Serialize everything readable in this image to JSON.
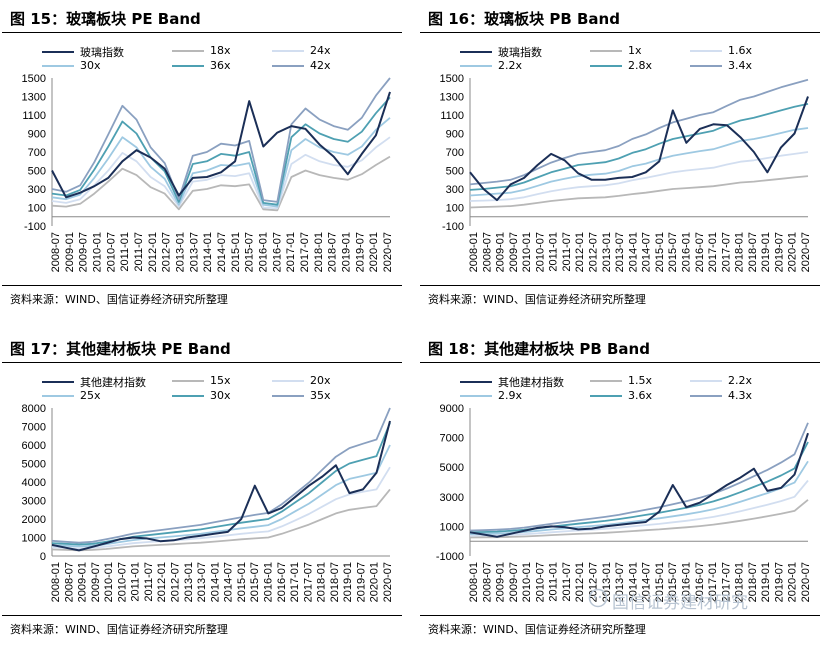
{
  "watermark": {
    "text": "国信证券建材研究",
    "icon": "wechat-icon"
  },
  "x_categories": [
    "2008-01",
    "2008-07",
    "2009-01",
    "2009-07",
    "2010-01",
    "2010-07",
    "2011-01",
    "2011-07",
    "2012-01",
    "2012-07",
    "2013-01",
    "2013-07",
    "2014-01",
    "2014-07",
    "2015-01",
    "2015-07",
    "2016-01",
    "2016-07",
    "2017-01",
    "2017-07",
    "2018-01",
    "2018-07",
    "2019-01",
    "2019-07",
    "2020-01",
    "2020-07"
  ],
  "panels": [
    {
      "title": "图 15：玻璃板块 PE Band",
      "source": "资料来源：WIND、国信证券经济研究所整理",
      "chart_data": {
        "type": "line",
        "x_labels": [
          "2008-07",
          "2009-01",
          "2009-07",
          "2010-01",
          "2010-07",
          "2011-01",
          "2011-07",
          "2012-01",
          "2012-07",
          "2013-01",
          "2013-07",
          "2014-01",
          "2014-07",
          "2015-01",
          "2015-07",
          "2016-01",
          "2016-07",
          "2017-01",
          "2017-07",
          "2018-01",
          "2018-07",
          "2019-01",
          "2019-07",
          "2020-01",
          "2020-07"
        ],
        "ylim": [
          -100,
          1500
        ],
        "yticks": [
          -100,
          100,
          300,
          500,
          700,
          900,
          1100,
          1300,
          1500
        ],
        "series": [
          {
            "name": "玻璃指数",
            "color": "#1b2f57",
            "values": [
              500,
              210,
              260,
              330,
              420,
              600,
              720,
              640,
              520,
              230,
              420,
              430,
              480,
              600,
              1250,
              760,
              910,
              980,
              950,
              780,
              650,
              460,
              680,
              880,
              1350
            ]
          },
          {
            "name": "18x",
            "color": "#b8b8b8",
            "values": [
              120,
              110,
              140,
              250,
              380,
              520,
              450,
              320,
              250,
              80,
              280,
              300,
              340,
              330,
              350,
              80,
              70,
              430,
              500,
              450,
              420,
              400,
              460,
              560,
              650
            ]
          },
          {
            "name": "24x",
            "color": "#d2def0",
            "values": [
              170,
              150,
              190,
              340,
              500,
              690,
              600,
              430,
              330,
              110,
              380,
              400,
              450,
              440,
              470,
              100,
              90,
              570,
              670,
              600,
              560,
              540,
              610,
              750,
              860
            ]
          },
          {
            "name": "30x",
            "color": "#9ec9e2",
            "values": [
              210,
              190,
              240,
              420,
              630,
              860,
              750,
              540,
              410,
              130,
              470,
              500,
              560,
              550,
              580,
              130,
              110,
              720,
              840,
              750,
              700,
              670,
              760,
              940,
              1070
            ]
          },
          {
            "name": "36x",
            "color": "#4ea0b2",
            "values": [
              250,
              230,
              290,
              510,
              760,
              1030,
              900,
              640,
              490,
              160,
              570,
              600,
              680,
              660,
              700,
              150,
              130,
              860,
              1000,
              900,
              840,
              810,
              920,
              1120,
              1290
            ]
          },
          {
            "name": "42x",
            "color": "#8aa0c0",
            "values": [
              300,
              270,
              340,
              590,
              890,
              1200,
              1050,
              750,
              580,
              190,
              660,
              700,
              790,
              770,
              820,
              180,
              160,
              1000,
              1170,
              1050,
              980,
              940,
              1070,
              1310,
              1500
            ]
          }
        ]
      }
    },
    {
      "title": "图 16：玻璃板块 PB Band",
      "source": "资料来源：WIND、国信证券经济研究所整理",
      "chart_data": {
        "type": "line",
        "x_labels": [
          "2008-01",
          "2008-07",
          "2009-01",
          "2009-07",
          "2010-01",
          "2010-07",
          "2011-01",
          "2011-07",
          "2012-01",
          "2012-07",
          "2013-01",
          "2013-07",
          "2014-01",
          "2014-07",
          "2015-01",
          "2015-07",
          "2016-01",
          "2016-07",
          "2017-01",
          "2017-07",
          "2018-01",
          "2018-07",
          "2019-01",
          "2019-07",
          "2020-01",
          "2020-07"
        ],
        "ylim": [
          -100,
          1500
        ],
        "yticks": [
          -100,
          100,
          300,
          500,
          700,
          900,
          1100,
          1300,
          1500
        ],
        "series": [
          {
            "name": "玻璃指数",
            "color": "#1b2f57",
            "values": [
              480,
              300,
              180,
              350,
              420,
              560,
              680,
              610,
              470,
              400,
              400,
              420,
              430,
              480,
              600,
              1150,
              800,
              950,
              1000,
              990,
              860,
              700,
              480,
              750,
              900,
              1300
            ]
          },
          {
            "name": "1x",
            "color": "#b8b8b8",
            "values": [
              100,
              105,
              110,
              115,
              130,
              150,
              170,
              185,
              200,
              205,
              210,
              225,
              245,
              260,
              280,
              300,
              310,
              320,
              330,
              350,
              370,
              380,
              395,
              410,
              425,
              440
            ]
          },
          {
            "name": "1.6x",
            "color": "#d2def0",
            "values": [
              170,
              175,
              180,
              190,
              210,
              245,
              275,
              300,
              320,
              330,
              340,
              360,
              395,
              420,
              450,
              480,
              500,
              515,
              530,
              565,
              595,
              610,
              635,
              660,
              680,
              700
            ]
          },
          {
            "name": "2.2x",
            "color": "#9ec9e2",
            "values": [
              230,
              240,
              250,
              260,
              290,
              335,
              380,
              410,
              440,
              455,
              465,
              495,
              545,
              575,
              620,
              660,
              685,
              710,
              730,
              775,
              820,
              840,
              870,
              905,
              940,
              960
            ]
          },
          {
            "name": "2.8x",
            "color": "#4ea0b2",
            "values": [
              290,
              300,
              315,
              330,
              370,
              425,
              480,
              520,
              560,
              575,
              590,
              630,
              690,
              730,
              790,
              840,
              870,
              900,
              930,
              990,
              1040,
              1070,
              1110,
              1150,
              1190,
              1220
            ]
          },
          {
            "name": "3.4x",
            "color": "#8aa0c0",
            "values": [
              350,
              365,
              380,
              400,
              450,
              520,
              585,
              635,
              680,
              700,
              720,
              765,
              840,
              890,
              960,
              1020,
              1060,
              1100,
              1130,
              1200,
              1265,
              1300,
              1350,
              1400,
              1440,
              1480
            ]
          }
        ]
      }
    },
    {
      "title": "图 17：其他建材板块 PE Band",
      "source": "资料来源：WIND、国信证券经济研究所整理",
      "chart_data": {
        "type": "line",
        "x_labels": [
          "2008-01",
          "2008-07",
          "2009-01",
          "2009-07",
          "2010-01",
          "2010-07",
          "2011-01",
          "2011-07",
          "2012-01",
          "2012-07",
          "2013-01",
          "2013-07",
          "2014-01",
          "2014-07",
          "2015-01",
          "2015-07",
          "2016-01",
          "2016-07",
          "2017-01",
          "2017-07",
          "2018-01",
          "2018-07",
          "2019-01",
          "2019-07",
          "2020-01",
          "2020-07"
        ],
        "ylim": [
          0,
          8000
        ],
        "yticks": [
          0,
          1000,
          2000,
          3000,
          4000,
          5000,
          6000,
          7000,
          8000
        ],
        "series": [
          {
            "name": "其他建材指数",
            "color": "#1b2f57",
            "values": [
              600,
              450,
              300,
              500,
              700,
              900,
              1000,
              950,
              800,
              850,
              1000,
              1100,
              1200,
              1300,
              2000,
              3800,
              2300,
              2600,
              3200,
              3800,
              4300,
              4900,
              3400,
              3600,
              4500,
              7300
            ]
          },
          {
            "name": "15x",
            "color": "#b8b8b8",
            "values": [
              350,
              330,
              310,
              330,
              380,
              450,
              520,
              560,
              600,
              640,
              680,
              720,
              780,
              840,
              900,
              950,
              1000,
              1200,
              1450,
              1700,
              2000,
              2300,
              2500,
              2600,
              2700,
              3600
            ]
          },
          {
            "name": "20x",
            "color": "#d2def0",
            "values": [
              470,
              440,
              410,
              440,
              510,
              600,
              690,
              750,
              800,
              850,
              900,
              960,
              1040,
              1120,
              1200,
              1270,
              1330,
              1600,
              1930,
              2270,
              2670,
              3070,
              3330,
              3470,
              3600,
              4800
            ]
          },
          {
            "name": "25x",
            "color": "#9ec9e2",
            "values": [
              580,
              550,
              520,
              550,
              640,
              750,
              860,
              940,
              1000,
              1060,
              1130,
              1200,
              1300,
              1400,
              1500,
              1580,
              1670,
              2000,
              2420,
              2830,
              3330,
              3830,
              4170,
              4330,
              4500,
              6000
            ]
          },
          {
            "name": "30x",
            "color": "#4ea0b2",
            "values": [
              700,
              660,
              620,
              660,
              770,
              900,
              1040,
              1120,
              1200,
              1280,
              1360,
              1440,
              1560,
              1680,
              1800,
              1900,
              2000,
              2400,
              2900,
              3400,
              4000,
              4600,
              5000,
              5200,
              5400,
              7200
            ]
          },
          {
            "name": "35x",
            "color": "#8aa0c0",
            "values": [
              820,
              770,
              720,
              770,
              900,
              1050,
              1210,
              1310,
              1400,
              1490,
              1590,
              1680,
              1820,
              1960,
              2100,
              2220,
              2330,
              2800,
              3380,
              3970,
              4670,
              5370,
              5830,
              6070,
              6300,
              8000
            ]
          }
        ]
      }
    },
    {
      "title": "图 18：其他建材板块 PB Band",
      "source": "资料来源：WIND、国信证券经济研究所整理",
      "chart_data": {
        "type": "line",
        "x_labels": [
          "2008-01",
          "2008-07",
          "2009-01",
          "2009-07",
          "2010-01",
          "2010-07",
          "2011-01",
          "2011-07",
          "2012-01",
          "2012-07",
          "2013-01",
          "2013-07",
          "2014-01",
          "2014-07",
          "2015-01",
          "2015-07",
          "2016-01",
          "2016-07",
          "2017-01",
          "2017-07",
          "2018-01",
          "2018-07",
          "2019-01",
          "2019-07",
          "2020-01",
          "2020-07"
        ],
        "ylim": [
          -1000,
          9000
        ],
        "yticks": [
          -1000,
          1000,
          3000,
          5000,
          7000,
          9000
        ],
        "series": [
          {
            "name": "其他建材指数",
            "color": "#1b2f57",
            "values": [
              600,
              450,
              300,
              500,
              700,
              900,
              1000,
              950,
              800,
              850,
              1000,
              1100,
              1200,
              1300,
              2000,
              3800,
              2300,
              2600,
              3200,
              3800,
              4300,
              4900,
              3400,
              3600,
              4500,
              7300
            ]
          },
          {
            "name": "1.5x",
            "color": "#b8b8b8",
            "values": [
              250,
              260,
              270,
              290,
              320,
              360,
              410,
              450,
              490,
              530,
              570,
              620,
              680,
              740,
              800,
              870,
              940,
              1020,
              1120,
              1240,
              1380,
              1530,
              1680,
              1850,
              2050,
              2800
            ]
          },
          {
            "name": "2.2x",
            "color": "#d2def0",
            "values": [
              370,
              380,
              400,
              430,
              470,
              530,
              600,
              660,
              720,
              780,
              840,
              910,
              1000,
              1090,
              1170,
              1280,
              1380,
              1500,
              1640,
              1820,
              2020,
              2240,
              2460,
              2710,
              3000,
              4100
            ]
          },
          {
            "name": "2.9x",
            "color": "#9ec9e2",
            "values": [
              480,
              500,
              520,
              560,
              620,
              700,
              790,
              870,
              950,
              1030,
              1100,
              1200,
              1310,
              1430,
              1550,
              1680,
              1820,
              1970,
              2160,
              2400,
              2670,
              2960,
              3250,
              3580,
              3960,
              5400
            ]
          },
          {
            "name": "3.6x",
            "color": "#4ea0b2",
            "values": [
              600,
              620,
              650,
              700,
              770,
              870,
              980,
              1080,
              1180,
              1280,
              1370,
              1490,
              1630,
              1780,
              1920,
              2090,
              2260,
              2450,
              2690,
              2980,
              3310,
              3670,
              4030,
              4440,
              4920,
              6700
            ]
          },
          {
            "name": "4.3x",
            "color": "#8aa0c0",
            "values": [
              720,
              740,
              780,
              830,
              920,
              1040,
              1170,
              1290,
              1410,
              1530,
              1640,
              1780,
              1950,
              2120,
              2290,
              2490,
              2700,
              2930,
              3210,
              3560,
              3960,
              4390,
              4820,
              5310,
              5870,
              8000
            ]
          }
        ]
      }
    }
  ]
}
